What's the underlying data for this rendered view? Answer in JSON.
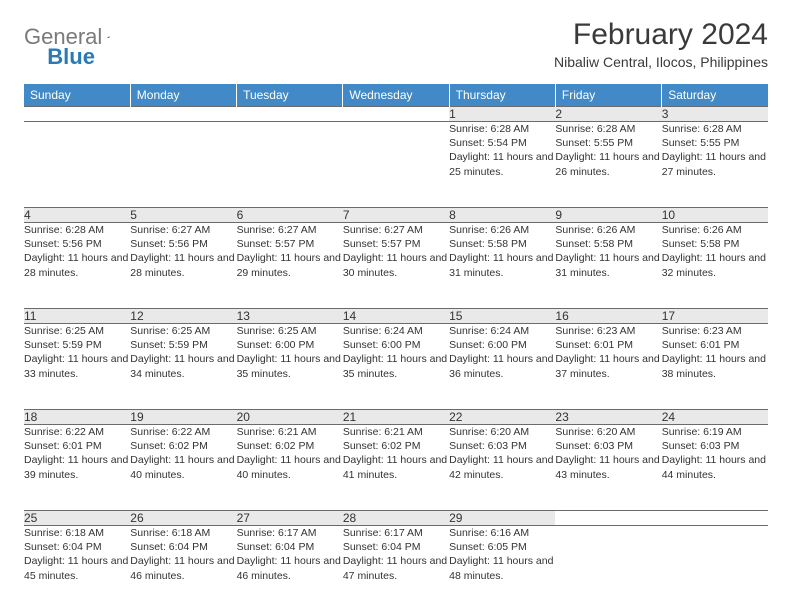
{
  "brand": {
    "part1": "General",
    "part2": "Blue"
  },
  "title": "February 2024",
  "location": "Nibaliw Central, Ilocos, Philippines",
  "colors": {
    "header_bg": "#4189c7",
    "header_text": "#ffffff",
    "daynum_bg": "#e9e9e9",
    "border": "#6b6b6b",
    "brand_gray": "#7a7a7a",
    "brand_blue": "#2a7ab8"
  },
  "weekdays": [
    "Sunday",
    "Monday",
    "Tuesday",
    "Wednesday",
    "Thursday",
    "Friday",
    "Saturday"
  ],
  "weeks": [
    [
      null,
      null,
      null,
      null,
      {
        "n": "1",
        "sr": "6:28 AM",
        "ss": "5:54 PM",
        "dl": "11 hours and 25 minutes."
      },
      {
        "n": "2",
        "sr": "6:28 AM",
        "ss": "5:55 PM",
        "dl": "11 hours and 26 minutes."
      },
      {
        "n": "3",
        "sr": "6:28 AM",
        "ss": "5:55 PM",
        "dl": "11 hours and 27 minutes."
      }
    ],
    [
      {
        "n": "4",
        "sr": "6:28 AM",
        "ss": "5:56 PM",
        "dl": "11 hours and 28 minutes."
      },
      {
        "n": "5",
        "sr": "6:27 AM",
        "ss": "5:56 PM",
        "dl": "11 hours and 28 minutes."
      },
      {
        "n": "6",
        "sr": "6:27 AM",
        "ss": "5:57 PM",
        "dl": "11 hours and 29 minutes."
      },
      {
        "n": "7",
        "sr": "6:27 AM",
        "ss": "5:57 PM",
        "dl": "11 hours and 30 minutes."
      },
      {
        "n": "8",
        "sr": "6:26 AM",
        "ss": "5:58 PM",
        "dl": "11 hours and 31 minutes."
      },
      {
        "n": "9",
        "sr": "6:26 AM",
        "ss": "5:58 PM",
        "dl": "11 hours and 31 minutes."
      },
      {
        "n": "10",
        "sr": "6:26 AM",
        "ss": "5:58 PM",
        "dl": "11 hours and 32 minutes."
      }
    ],
    [
      {
        "n": "11",
        "sr": "6:25 AM",
        "ss": "5:59 PM",
        "dl": "11 hours and 33 minutes."
      },
      {
        "n": "12",
        "sr": "6:25 AM",
        "ss": "5:59 PM",
        "dl": "11 hours and 34 minutes."
      },
      {
        "n": "13",
        "sr": "6:25 AM",
        "ss": "6:00 PM",
        "dl": "11 hours and 35 minutes."
      },
      {
        "n": "14",
        "sr": "6:24 AM",
        "ss": "6:00 PM",
        "dl": "11 hours and 35 minutes."
      },
      {
        "n": "15",
        "sr": "6:24 AM",
        "ss": "6:00 PM",
        "dl": "11 hours and 36 minutes."
      },
      {
        "n": "16",
        "sr": "6:23 AM",
        "ss": "6:01 PM",
        "dl": "11 hours and 37 minutes."
      },
      {
        "n": "17",
        "sr": "6:23 AM",
        "ss": "6:01 PM",
        "dl": "11 hours and 38 minutes."
      }
    ],
    [
      {
        "n": "18",
        "sr": "6:22 AM",
        "ss": "6:01 PM",
        "dl": "11 hours and 39 minutes."
      },
      {
        "n": "19",
        "sr": "6:22 AM",
        "ss": "6:02 PM",
        "dl": "11 hours and 40 minutes."
      },
      {
        "n": "20",
        "sr": "6:21 AM",
        "ss": "6:02 PM",
        "dl": "11 hours and 40 minutes."
      },
      {
        "n": "21",
        "sr": "6:21 AM",
        "ss": "6:02 PM",
        "dl": "11 hours and 41 minutes."
      },
      {
        "n": "22",
        "sr": "6:20 AM",
        "ss": "6:03 PM",
        "dl": "11 hours and 42 minutes."
      },
      {
        "n": "23",
        "sr": "6:20 AM",
        "ss": "6:03 PM",
        "dl": "11 hours and 43 minutes."
      },
      {
        "n": "24",
        "sr": "6:19 AM",
        "ss": "6:03 PM",
        "dl": "11 hours and 44 minutes."
      }
    ],
    [
      {
        "n": "25",
        "sr": "6:18 AM",
        "ss": "6:04 PM",
        "dl": "11 hours and 45 minutes."
      },
      {
        "n": "26",
        "sr": "6:18 AM",
        "ss": "6:04 PM",
        "dl": "11 hours and 46 minutes."
      },
      {
        "n": "27",
        "sr": "6:17 AM",
        "ss": "6:04 PM",
        "dl": "11 hours and 46 minutes."
      },
      {
        "n": "28",
        "sr": "6:17 AM",
        "ss": "6:04 PM",
        "dl": "11 hours and 47 minutes."
      },
      {
        "n": "29",
        "sr": "6:16 AM",
        "ss": "6:05 PM",
        "dl": "11 hours and 48 minutes."
      },
      null,
      null
    ]
  ],
  "labels": {
    "sunrise": "Sunrise:",
    "sunset": "Sunset:",
    "daylight": "Daylight:"
  }
}
